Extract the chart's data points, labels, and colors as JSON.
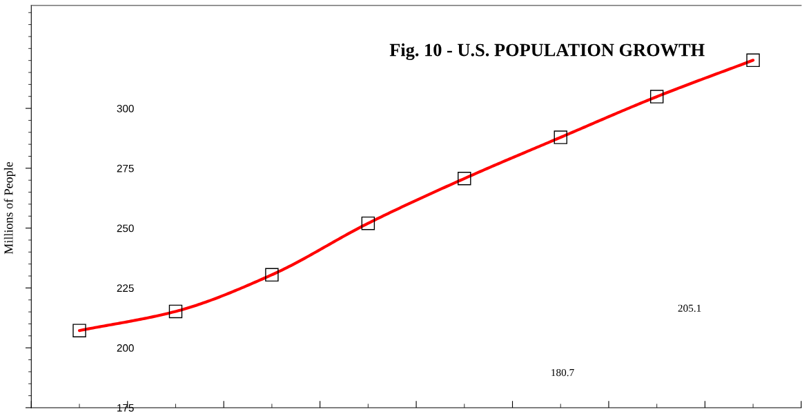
{
  "chart_data": {
    "type": "line",
    "title": "Fig. 10 - U.S. POPULATION GROWTH",
    "ylabel": "Millions of People",
    "categories": [
      null,
      null,
      null,
      null,
      null,
      null,
      null,
      null
    ],
    "series": [
      {
        "color": "#ff0000",
        "values": [
          207.2,
          215.2,
          230.5,
          252.0,
          270.7,
          287.9,
          304.9,
          320.1
        ]
      }
    ],
    "ylim": [
      175,
      343
    ],
    "yticks": [
      175,
      200,
      225,
      250,
      275,
      300
    ],
    "marker": "square",
    "line_style": "solid",
    "grid": false,
    "legend": false,
    "annotations": [
      "205.1",
      "180.7"
    ]
  }
}
